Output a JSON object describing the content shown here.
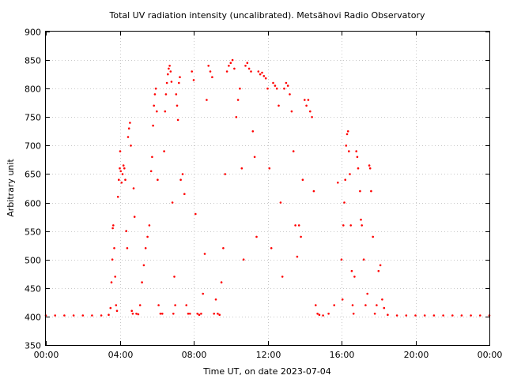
{
  "chart_data": {
    "type": "scatter",
    "title": "Total UV radiation intensity (uncalibrated). Metsähovi Radio Observatory",
    "xlabel": "Time UT, on date 2023-07-04",
    "ylabel": "Arbitrary unit",
    "xlim": [
      0,
      24
    ],
    "ylim": [
      350,
      900
    ],
    "x_ticks": [
      {
        "value": 0,
        "label": "00:00"
      },
      {
        "value": 4,
        "label": "04:00"
      },
      {
        "value": 8,
        "label": "08:00"
      },
      {
        "value": 12,
        "label": "12:00"
      },
      {
        "value": 16,
        "label": "16:00"
      },
      {
        "value": 20,
        "label": "20:00"
      },
      {
        "value": 24,
        "label": "00:00"
      }
    ],
    "y_ticks": [
      350,
      400,
      450,
      500,
      550,
      600,
      650,
      700,
      750,
      800,
      850,
      900
    ],
    "grid": true,
    "marker_color": "#ff0000",
    "x_units": "hours UT",
    "series": [
      {
        "points": [
          [
            0.0,
            402
          ],
          [
            0.5,
            402
          ],
          [
            1.0,
            402
          ],
          [
            1.5,
            402
          ],
          [
            2.0,
            402
          ],
          [
            2.5,
            402
          ],
          [
            3.0,
            402
          ],
          [
            3.4,
            403
          ],
          [
            3.5,
            415
          ],
          [
            3.55,
            460
          ],
          [
            3.6,
            500
          ],
          [
            3.62,
            555
          ],
          [
            3.65,
            560
          ],
          [
            3.7,
            520
          ],
          [
            3.75,
            470
          ],
          [
            3.8,
            420
          ],
          [
            3.85,
            410
          ],
          [
            3.9,
            610
          ],
          [
            3.95,
            640
          ],
          [
            4.0,
            660
          ],
          [
            4.02,
            690
          ],
          [
            4.05,
            655
          ],
          [
            4.1,
            635
          ],
          [
            4.15,
            650
          ],
          [
            4.2,
            665
          ],
          [
            4.25,
            660
          ],
          [
            4.3,
            640
          ],
          [
            4.35,
            550
          ],
          [
            4.4,
            520
          ],
          [
            4.45,
            715
          ],
          [
            4.5,
            730
          ],
          [
            4.55,
            740
          ],
          [
            4.6,
            700
          ],
          [
            4.65,
            410
          ],
          [
            4.7,
            405
          ],
          [
            4.75,
            625
          ],
          [
            4.8,
            575
          ],
          [
            4.9,
            405
          ],
          [
            5.0,
            404
          ],
          [
            5.1,
            420
          ],
          [
            5.2,
            460
          ],
          [
            5.3,
            490
          ],
          [
            5.4,
            520
          ],
          [
            5.5,
            540
          ],
          [
            5.6,
            560
          ],
          [
            5.7,
            655
          ],
          [
            5.75,
            680
          ],
          [
            5.8,
            735
          ],
          [
            5.85,
            770
          ],
          [
            5.9,
            790
          ],
          [
            5.95,
            800
          ],
          [
            6.0,
            760
          ],
          [
            6.05,
            640
          ],
          [
            6.1,
            420
          ],
          [
            6.2,
            405
          ],
          [
            6.3,
            405
          ],
          [
            6.4,
            690
          ],
          [
            6.45,
            760
          ],
          [
            6.5,
            790
          ],
          [
            6.55,
            810
          ],
          [
            6.6,
            825
          ],
          [
            6.65,
            835
          ],
          [
            6.7,
            840
          ],
          [
            6.75,
            830
          ],
          [
            6.8,
            812
          ],
          [
            6.85,
            600
          ],
          [
            6.9,
            405
          ],
          [
            6.95,
            470
          ],
          [
            7.0,
            420
          ],
          [
            7.05,
            790
          ],
          [
            7.1,
            770
          ],
          [
            7.15,
            745
          ],
          [
            7.2,
            810
          ],
          [
            7.25,
            820
          ],
          [
            7.3,
            640
          ],
          [
            7.4,
            650
          ],
          [
            7.5,
            615
          ],
          [
            7.6,
            420
          ],
          [
            7.7,
            405
          ],
          [
            7.8,
            405
          ],
          [
            7.9,
            830
          ],
          [
            8.0,
            815
          ],
          [
            8.1,
            580
          ],
          [
            8.2,
            405
          ],
          [
            8.3,
            403
          ],
          [
            8.4,
            405
          ],
          [
            8.5,
            440
          ],
          [
            8.6,
            510
          ],
          [
            8.7,
            780
          ],
          [
            8.8,
            840
          ],
          [
            8.9,
            830
          ],
          [
            9.0,
            820
          ],
          [
            9.1,
            405
          ],
          [
            9.2,
            430
          ],
          [
            9.3,
            405
          ],
          [
            9.4,
            403
          ],
          [
            9.5,
            460
          ],
          [
            9.6,
            520
          ],
          [
            9.7,
            650
          ],
          [
            9.8,
            830
          ],
          [
            9.9,
            840
          ],
          [
            10.0,
            845
          ],
          [
            10.1,
            850
          ],
          [
            10.2,
            835
          ],
          [
            10.3,
            750
          ],
          [
            10.4,
            780
          ],
          [
            10.5,
            800
          ],
          [
            10.6,
            660
          ],
          [
            10.7,
            500
          ],
          [
            10.8,
            840
          ],
          [
            10.9,
            845
          ],
          [
            11.0,
            835
          ],
          [
            11.1,
            830
          ],
          [
            11.2,
            725
          ],
          [
            11.3,
            680
          ],
          [
            11.4,
            540
          ],
          [
            11.5,
            830
          ],
          [
            11.6,
            825
          ],
          [
            11.7,
            828
          ],
          [
            11.8,
            822
          ],
          [
            11.9,
            818
          ],
          [
            12.0,
            800
          ],
          [
            12.1,
            660
          ],
          [
            12.2,
            520
          ],
          [
            12.3,
            810
          ],
          [
            12.4,
            805
          ],
          [
            12.5,
            800
          ],
          [
            12.6,
            770
          ],
          [
            12.7,
            600
          ],
          [
            12.8,
            470
          ],
          [
            12.9,
            800
          ],
          [
            13.0,
            810
          ],
          [
            13.1,
            805
          ],
          [
            13.2,
            790
          ],
          [
            13.3,
            760
          ],
          [
            13.4,
            690
          ],
          [
            13.5,
            560
          ],
          [
            13.6,
            505
          ],
          [
            13.7,
            560
          ],
          [
            13.8,
            540
          ],
          [
            13.9,
            640
          ],
          [
            14.0,
            780
          ],
          [
            14.1,
            770
          ],
          [
            14.2,
            780
          ],
          [
            14.3,
            760
          ],
          [
            14.4,
            750
          ],
          [
            14.5,
            620
          ],
          [
            14.6,
            420
          ],
          [
            14.7,
            405
          ],
          [
            14.8,
            403
          ],
          [
            15.0,
            402
          ],
          [
            15.3,
            405
          ],
          [
            15.6,
            420
          ],
          [
            15.8,
            635
          ],
          [
            16.0,
            500
          ],
          [
            16.05,
            430
          ],
          [
            16.1,
            560
          ],
          [
            16.15,
            600
          ],
          [
            16.2,
            640
          ],
          [
            16.25,
            700
          ],
          [
            16.3,
            720
          ],
          [
            16.35,
            725
          ],
          [
            16.4,
            690
          ],
          [
            16.45,
            650
          ],
          [
            16.5,
            560
          ],
          [
            16.55,
            480
          ],
          [
            16.6,
            420
          ],
          [
            16.65,
            405
          ],
          [
            16.7,
            470
          ],
          [
            16.8,
            690
          ],
          [
            16.85,
            680
          ],
          [
            16.9,
            660
          ],
          [
            17.0,
            620
          ],
          [
            17.05,
            570
          ],
          [
            17.1,
            560
          ],
          [
            17.2,
            500
          ],
          [
            17.3,
            420
          ],
          [
            17.4,
            440
          ],
          [
            17.5,
            665
          ],
          [
            17.55,
            660
          ],
          [
            17.6,
            620
          ],
          [
            17.7,
            540
          ],
          [
            17.8,
            405
          ],
          [
            17.9,
            420
          ],
          [
            18.0,
            480
          ],
          [
            18.1,
            490
          ],
          [
            18.2,
            430
          ],
          [
            18.3,
            415
          ],
          [
            18.5,
            403
          ],
          [
            19.0,
            402
          ],
          [
            19.5,
            402
          ],
          [
            20.0,
            402
          ],
          [
            20.5,
            402
          ],
          [
            21.0,
            402
          ],
          [
            21.5,
            402
          ],
          [
            22.0,
            402
          ],
          [
            22.5,
            402
          ],
          [
            23.0,
            402
          ],
          [
            23.5,
            402
          ],
          [
            24.0,
            402
          ]
        ]
      }
    ]
  }
}
